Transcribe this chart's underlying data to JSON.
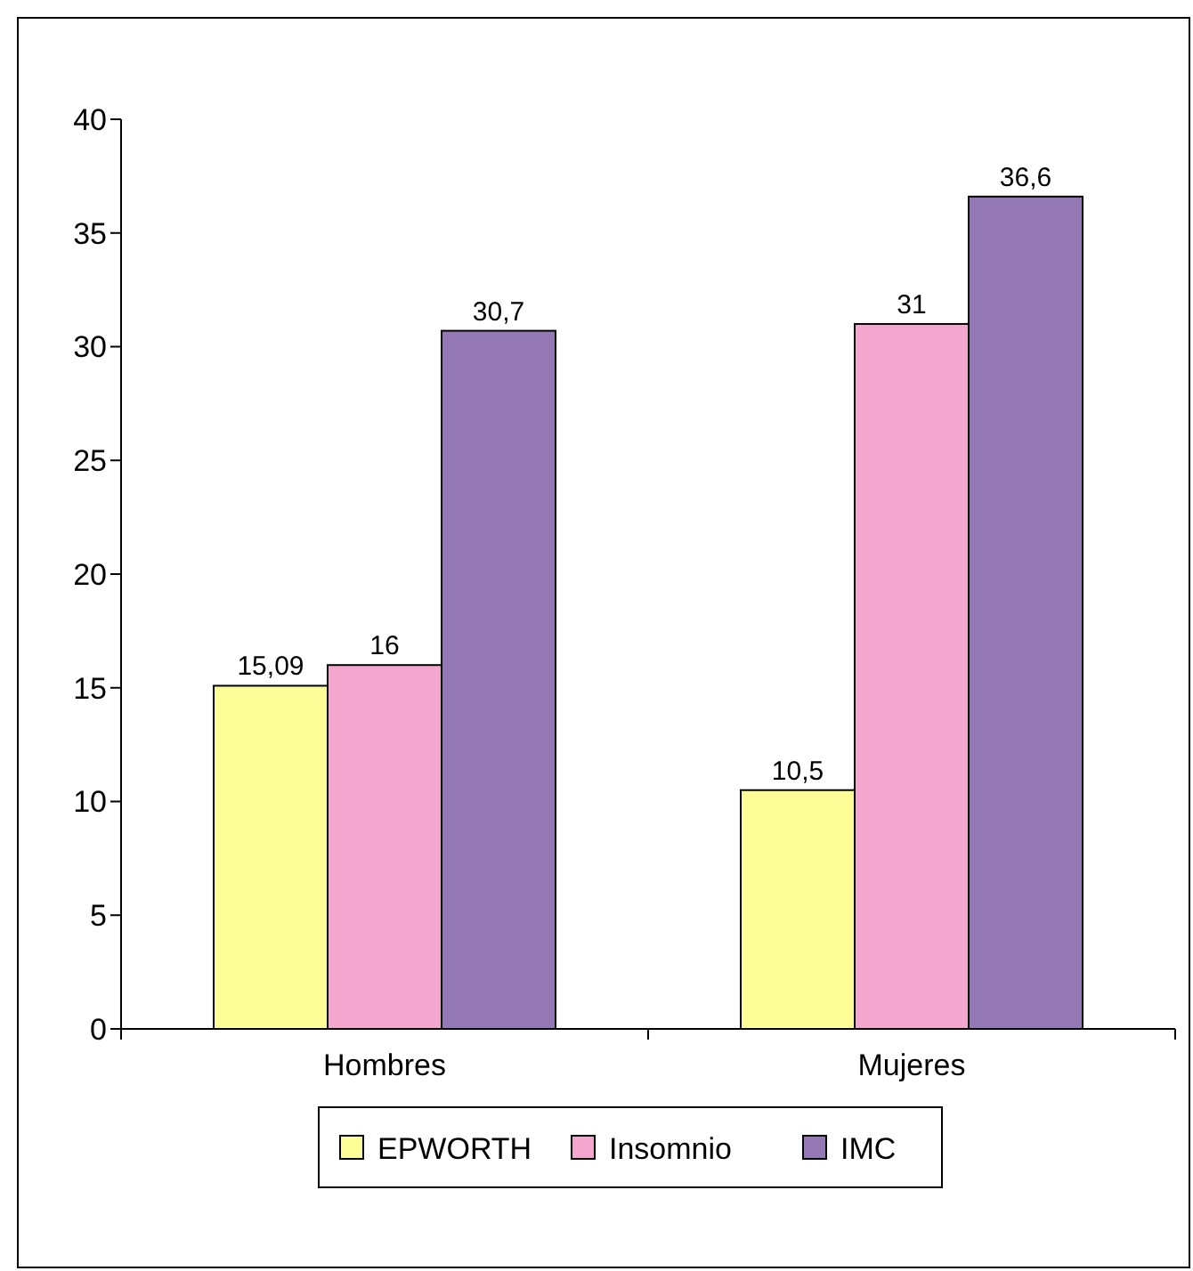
{
  "chart_data": {
    "type": "bar",
    "categories": [
      "Hombres",
      "Mujeres"
    ],
    "series": [
      {
        "name": "EPWORTH",
        "color": "#ffff99",
        "values": [
          15.09,
          10.5
        ],
        "value_labels": [
          "15,09",
          "10,5"
        ]
      },
      {
        "name": "Insomnio",
        "color": "#f4a6cf",
        "values": [
          16,
          31
        ],
        "value_labels": [
          "16",
          "31"
        ]
      },
      {
        "name": "IMC",
        "color": "#9478b5",
        "values": [
          30.7,
          36.6
        ],
        "value_labels": [
          "30,7",
          "36,6"
        ]
      }
    ],
    "ylim": [
      0,
      40
    ],
    "yticks": [
      0,
      5,
      10,
      15,
      20,
      25,
      30,
      35,
      40
    ],
    "grid": false,
    "legend": "bottom"
  }
}
